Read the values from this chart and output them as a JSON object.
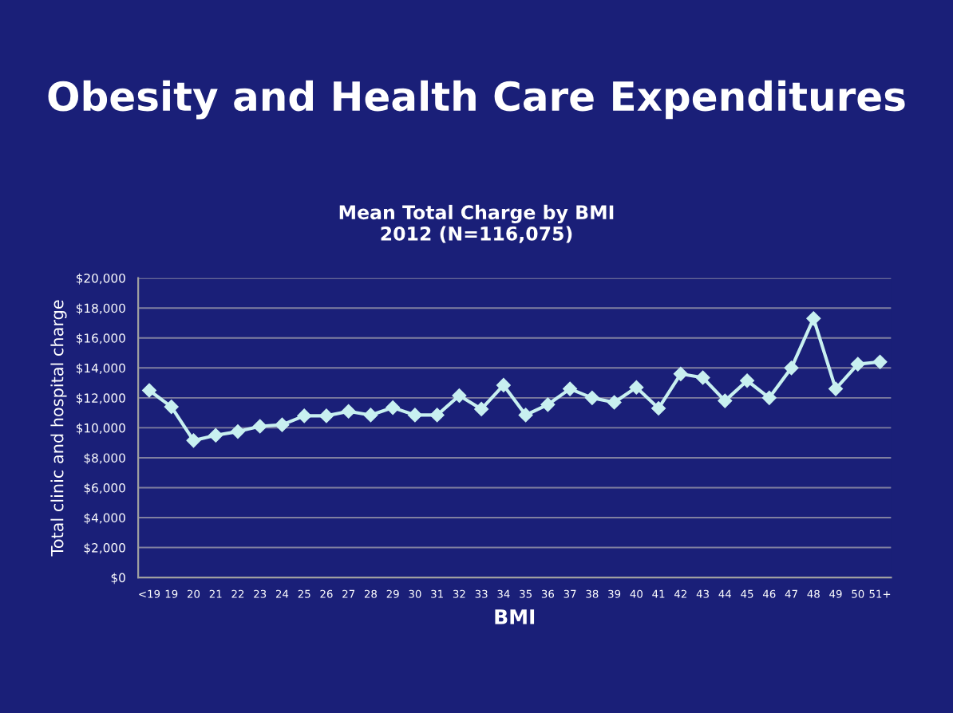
{
  "chart_data": {
    "type": "line",
    "title": "Obesity and Health Care Expenditures",
    "subtitle": "Mean Total Charge by BMI\n2012 (N=116,075)",
    "xlabel": "BMI",
    "ylabel": "Total clinic and hospital charge",
    "categories": [
      "<19",
      "19",
      "20",
      "21",
      "22",
      "23",
      "24",
      "25",
      "26",
      "27",
      "28",
      "29",
      "30",
      "31",
      "32",
      "33",
      "34",
      "35",
      "36",
      "37",
      "38",
      "39",
      "40",
      "41",
      "42",
      "43",
      "44",
      "45",
      "46",
      "47",
      "48",
      "49",
      "50",
      "51+"
    ],
    "series": [
      {
        "color": "#c8f0f0",
        "values": [
          12500,
          11400,
          9150,
          9500,
          9750,
          10100,
          10200,
          10800,
          10800,
          11100,
          10850,
          11350,
          10850,
          10850,
          12150,
          11250,
          12850,
          10850,
          11550,
          12600,
          12000,
          11700,
          12700,
          11300,
          13600,
          13350,
          11800,
          13150,
          12000,
          14000,
          17300,
          12600,
          14250,
          14400
        ]
      }
    ],
    "ylim": [
      0,
      20000
    ],
    "yticks": [
      {
        "value": 0,
        "label": "$0"
      },
      {
        "value": 2000,
        "label": "$2,000"
      },
      {
        "value": 4000,
        "label": "$4,000"
      },
      {
        "value": 6000,
        "label": "$6,000"
      },
      {
        "value": 8000,
        "label": "$8,000"
      },
      {
        "value": 10000,
        "label": "$10,000"
      },
      {
        "value": 12000,
        "label": "$12,000"
      },
      {
        "value": 14000,
        "label": "$14,000"
      },
      {
        "value": 16000,
        "label": "$16,000"
      },
      {
        "value": 18000,
        "label": "$18,000"
      },
      {
        "value": 20000,
        "label": "$20,000"
      }
    ],
    "grid": "y",
    "marker": "diamond",
    "line_style": "solid",
    "legend": false
  }
}
